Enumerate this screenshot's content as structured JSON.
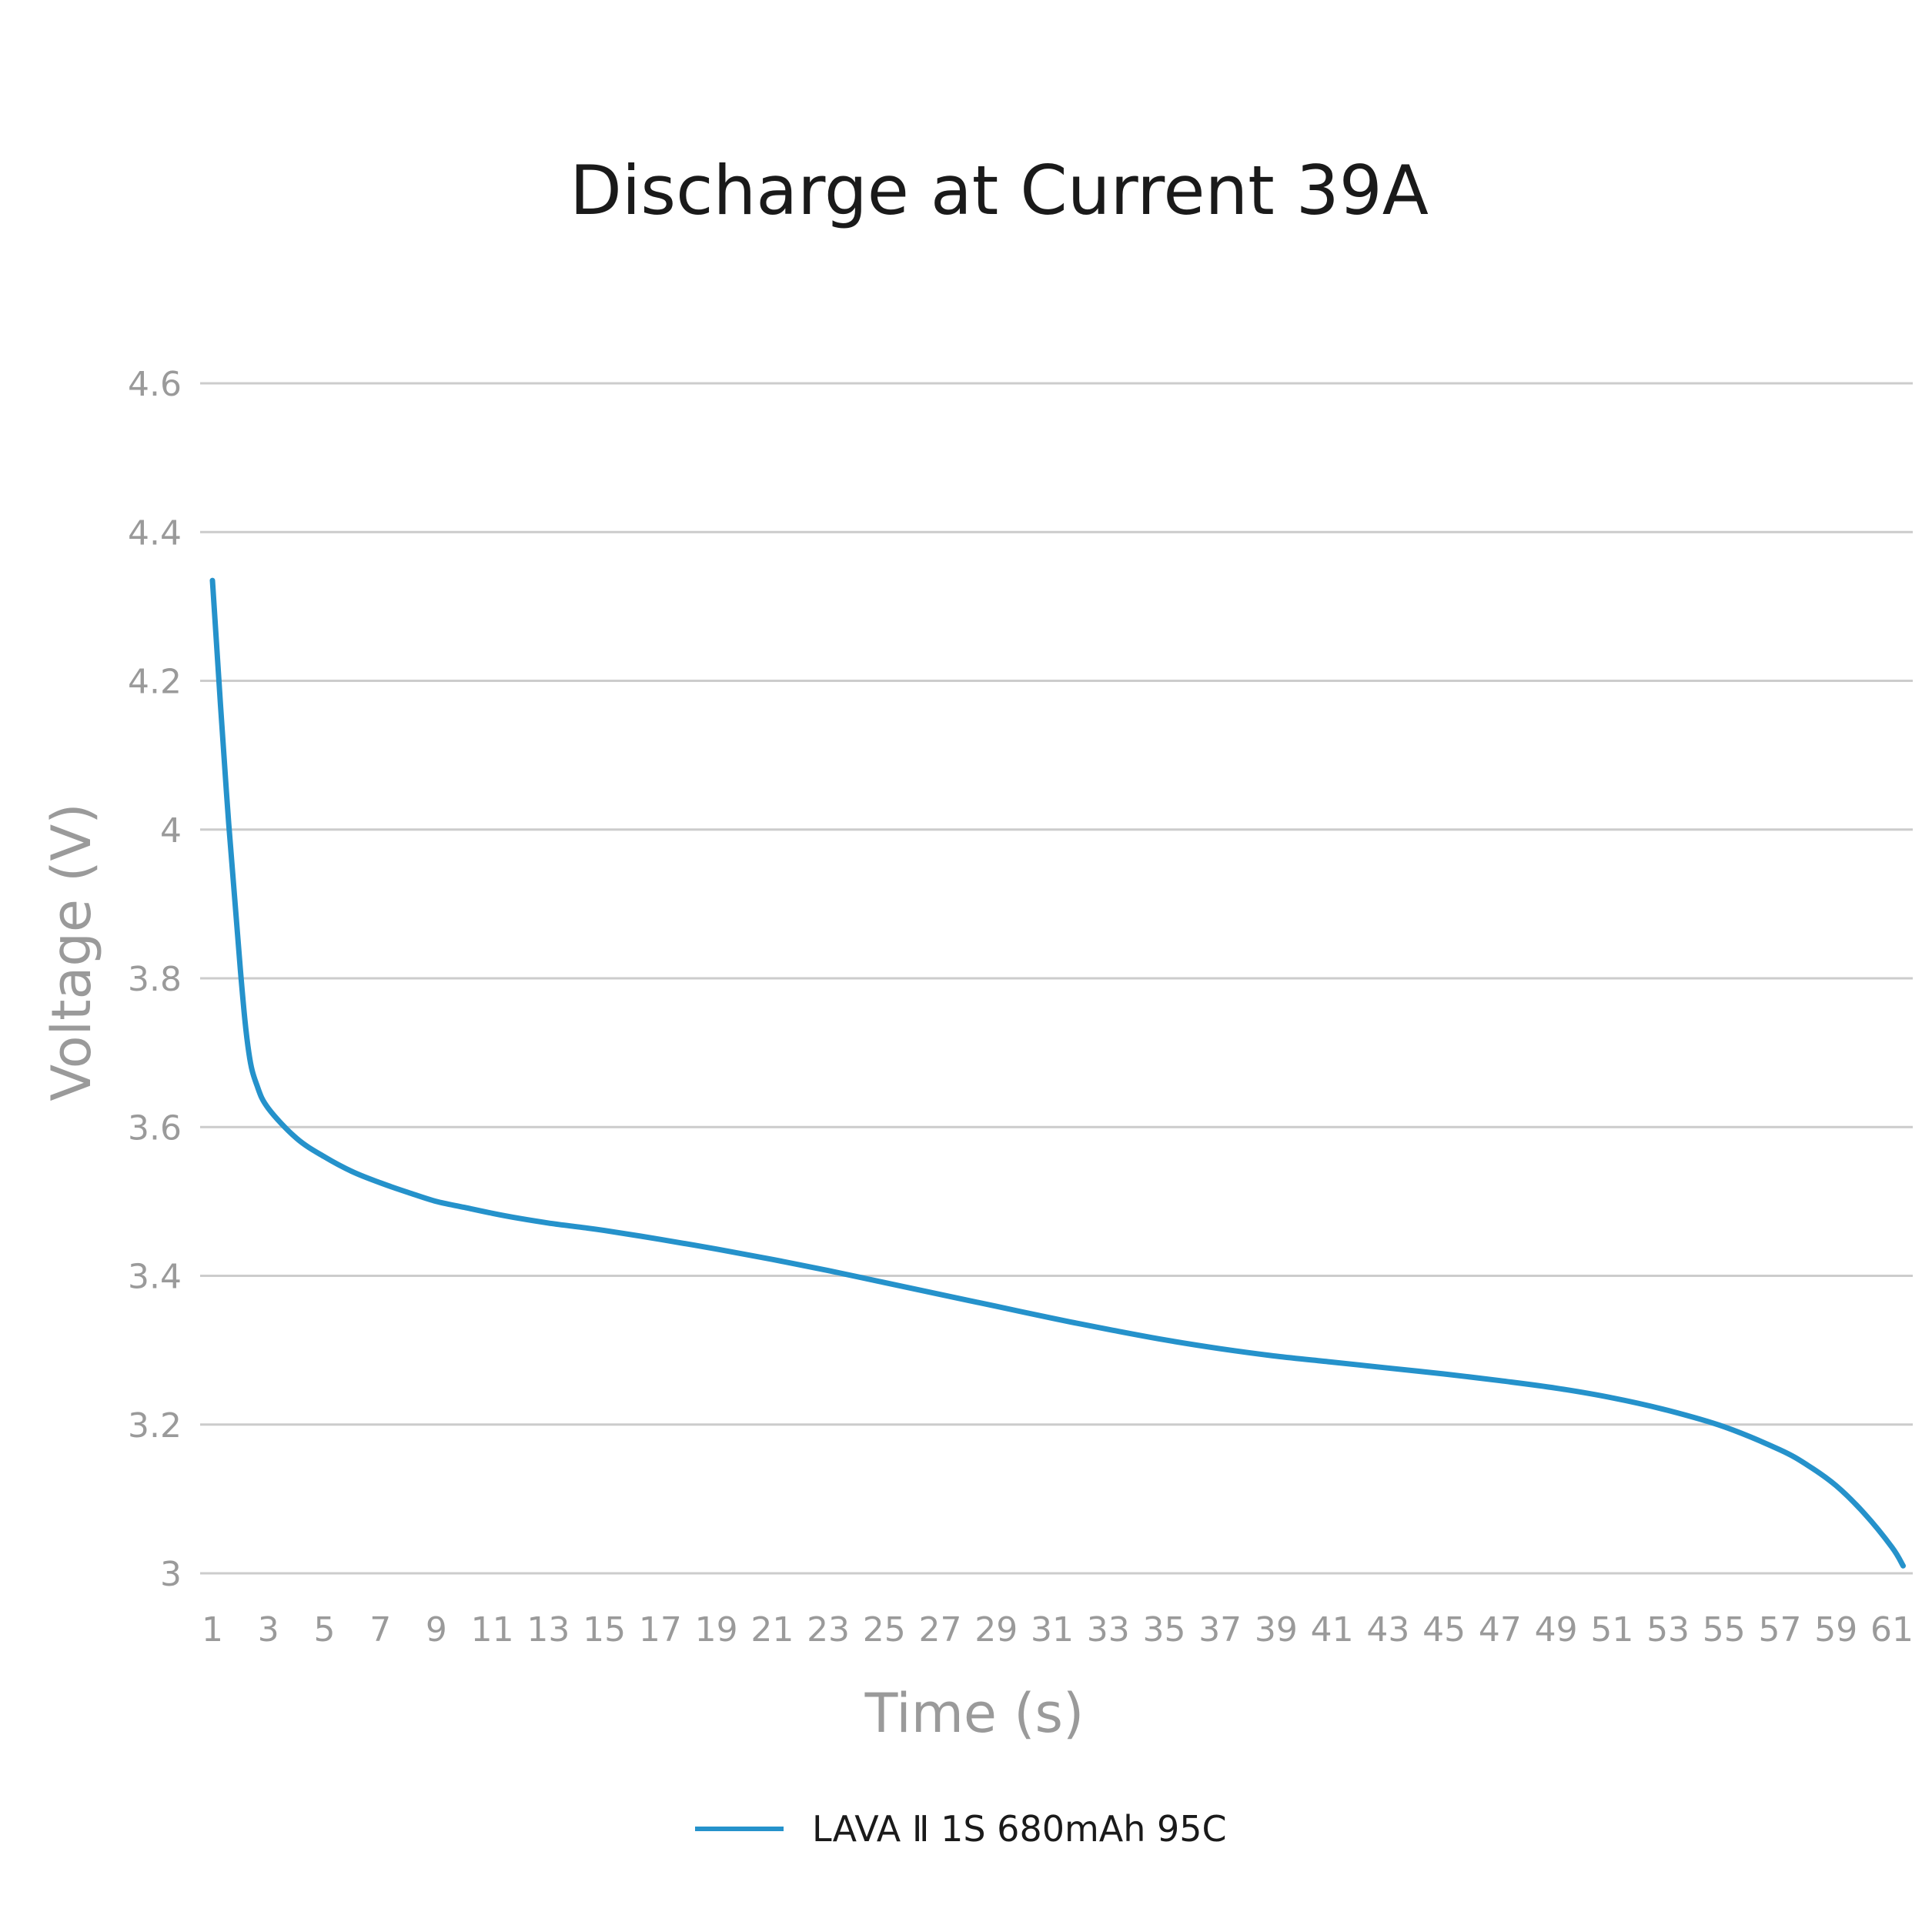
{
  "chart_data": {
    "type": "line",
    "title": "Discharge at Current 39A",
    "xlabel": "Time (s)",
    "ylabel": "Voltage (V)",
    "ylim": [
      3,
      4.6
    ],
    "y_ticks": [
      "4.6",
      "4.4",
      "4.2",
      "4",
      "3.8",
      "3.6",
      "3.4",
      "3.2",
      "3"
    ],
    "x_ticks": [
      "1",
      "3",
      "5",
      "7",
      "9",
      "11",
      "13",
      "15",
      "17",
      "19",
      "21",
      "23",
      "25",
      "27",
      "29",
      "31",
      "33",
      "35",
      "37",
      "39",
      "41",
      "43",
      "45",
      "47",
      "49",
      "51",
      "53",
      "55",
      "57",
      "59",
      "61"
    ],
    "grid": true,
    "legend_position": "bottom-center",
    "series": [
      {
        "name": "LAVA Ⅱ 1S 680mAh 95C",
        "color": "#2592cb",
        "x": [
          1,
          1.5,
          2,
          2.3,
          2.6,
          3,
          4,
          5,
          6,
          7,
          8,
          9,
          10,
          11,
          12,
          13,
          14,
          15,
          17,
          19,
          21,
          23,
          25,
          27,
          29,
          31,
          33,
          35,
          37,
          39,
          41,
          43,
          45,
          47,
          49,
          51,
          53,
          55,
          57,
          58,
          59,
          60,
          61,
          61.4
        ],
        "values": [
          4.335,
          4.05,
          3.81,
          3.7,
          3.655,
          3.625,
          3.585,
          3.56,
          3.54,
          3.525,
          3.512,
          3.5,
          3.492,
          3.484,
          3.477,
          3.471,
          3.466,
          3.461,
          3.449,
          3.436,
          3.422,
          3.407,
          3.391,
          3.375,
          3.359,
          3.343,
          3.328,
          3.314,
          3.302,
          3.292,
          3.284,
          3.276,
          3.268,
          3.259,
          3.249,
          3.236,
          3.219,
          3.197,
          3.166,
          3.145,
          3.118,
          3.081,
          3.035,
          3.01
        ]
      }
    ]
  }
}
